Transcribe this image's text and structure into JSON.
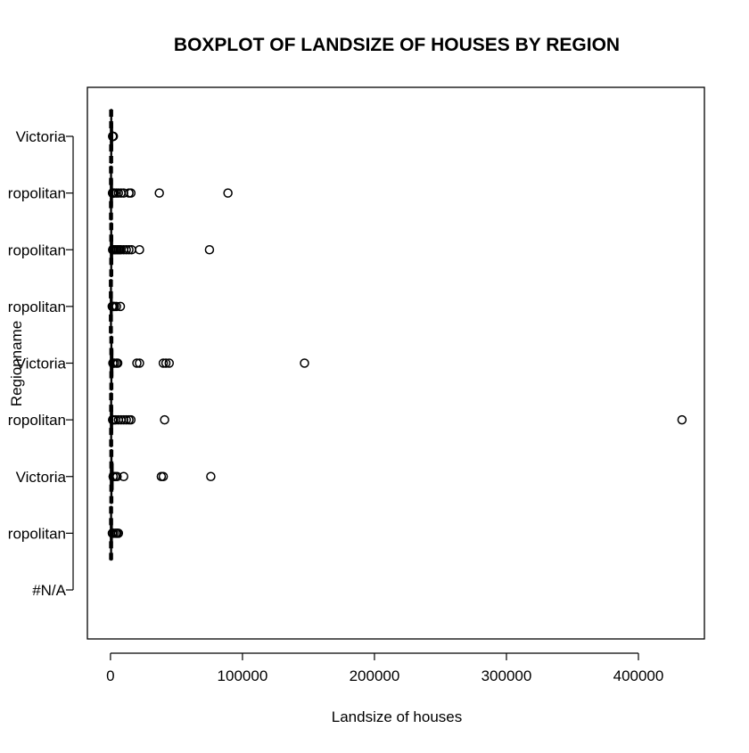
{
  "chart_data": {
    "type": "boxplot",
    "orientation": "horizontal",
    "title": "BOXPLOT OF LANDSIZE OF HOUSES BY REGION",
    "xlabel": "Landsize of houses",
    "ylabel": "Regionname",
    "xlim": [
      -17500,
      450000
    ],
    "xticks": [
      0,
      100000,
      200000,
      300000,
      400000
    ],
    "xtick_labels": [
      "0",
      "100000",
      "200000",
      "300000",
      "400000"
    ],
    "categories": [
      "Victoria",
      "ropolitan",
      "ropolitan",
      "ropolitan",
      "Victoria",
      "ropolitan",
      "Victoria",
      "ropolitan",
      "#N/A"
    ],
    "series": [
      {
        "category": "Victoria",
        "whisker_low": 0,
        "q1": 300,
        "median": 500,
        "q3": 800,
        "whisker_high": 1500,
        "outliers": [
          1600,
          1800,
          2000,
          2200
        ]
      },
      {
        "category": "ropolitan",
        "whisker_low": 0,
        "q1": 150,
        "median": 400,
        "q3": 700,
        "whisker_high": 1400,
        "outliers": [
          1500,
          2000,
          3000,
          4500,
          6000,
          8000,
          10000,
          14000,
          15500,
          37000,
          89000
        ]
      },
      {
        "category": "ropolitan",
        "whisker_low": 0,
        "q1": 300,
        "median": 580,
        "q3": 800,
        "whisker_high": 1500,
        "outliers": [
          1600,
          2000,
          3000,
          4000,
          5000,
          6000,
          7000,
          8000,
          10000,
          12000,
          14000,
          16000,
          22000,
          75000
        ]
      },
      {
        "category": "ropolitan",
        "whisker_low": 0,
        "q1": 100,
        "median": 300,
        "q3": 600,
        "whisker_high": 1200,
        "outliers": [
          1300,
          2000,
          3000,
          4500,
          7500
        ]
      },
      {
        "category": "Victoria",
        "whisker_low": 0,
        "q1": 400,
        "median": 650,
        "q3": 900,
        "whisker_high": 1700,
        "outliers": [
          1800,
          3000,
          4500,
          5500,
          20000,
          22000,
          40000,
          42000,
          44500,
          147000
        ]
      },
      {
        "category": "ropolitan",
        "whisker_low": 0,
        "q1": 250,
        "median": 500,
        "q3": 750,
        "whisker_high": 1500,
        "outliers": [
          1600,
          2500,
          4000,
          6000,
          8000,
          10000,
          12000,
          14000,
          15500,
          41000,
          433000
        ]
      },
      {
        "category": "Victoria",
        "whisker_low": 0,
        "q1": 350,
        "median": 650,
        "q3": 1000,
        "whisker_high": 1900,
        "outliers": [
          2000,
          3500,
          5000,
          10000,
          38500,
          40000,
          76000
        ]
      },
      {
        "category": "ropolitan",
        "whisker_low": 0,
        "q1": 200,
        "median": 450,
        "q3": 700,
        "whisker_high": 1300,
        "outliers": [
          1400,
          2500,
          4000,
          5000,
          6000
        ]
      },
      {
        "category": "#N/A",
        "whisker_low": null,
        "q1": null,
        "median": null,
        "q3": null,
        "whisker_high": null,
        "outliers": []
      }
    ],
    "grid": false,
    "legend": "none",
    "colors": {
      "stroke": "#000000",
      "background": "#ffffff"
    }
  }
}
